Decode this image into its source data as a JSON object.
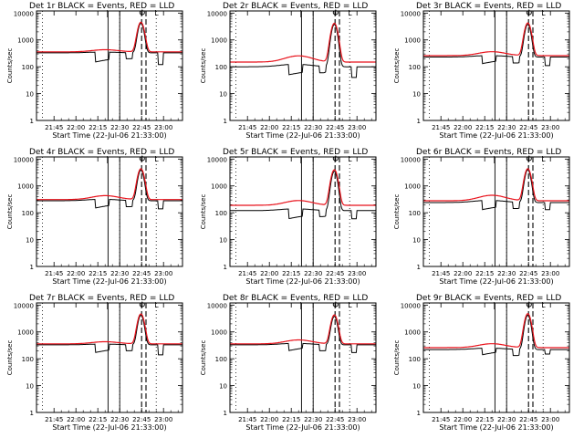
{
  "colors": {
    "events": "#000000",
    "lld": "#e8121b",
    "axes": "#000000",
    "background": "#ffffff"
  },
  "shared": {
    "ylabel": "Counts/sec",
    "xlabel": "Start Time (22-Jul-06 21:33:00)",
    "x_tick_labels": [
      "21:45",
      "22:00",
      "22:15",
      "22:30",
      "22:45",
      "23:00"
    ],
    "x_tick_minutes": [
      12,
      27,
      42,
      57,
      72,
      87
    ],
    "y_tick_labels": [
      "1",
      "10",
      "100",
      "1000",
      "10000"
    ],
    "y_tick_values": [
      1,
      10,
      100,
      1000,
      10000
    ],
    "event_markers": {
      "solid": "|",
      "flare_peak": "Φ",
      "end": "L"
    },
    "solid_line_minutes": [
      49,
      57
    ],
    "dashed_line_minutes": [
      72,
      75
    ],
    "dotted_line_minutes": [
      4,
      57,
      82
    ],
    "x_range_minutes": [
      0,
      100
    ],
    "y_range": [
      1,
      12000
    ],
    "y_scale": "log",
    "legend": "none"
  },
  "chart_data": [
    {
      "type": "line",
      "title": "Det 1r BLACK = Events, RED = LLD",
      "events_base": 330,
      "lld_base": 360,
      "events_dip": 150,
      "lld_bump": 1.2,
      "peak": 4200,
      "peak_lld": 4600,
      "post_dip": 120
    },
    {
      "type": "line",
      "title": "Det 2r BLACK = Events, RED = LLD",
      "events_base": 100,
      "lld_base": 150,
      "events_dip": 50,
      "lld_bump": 1.7,
      "peak": 3800,
      "peak_lld": 4200,
      "post_dip": 40
    },
    {
      "type": "line",
      "title": "Det 3r BLACK = Events, RED = LLD",
      "events_base": 230,
      "lld_base": 260,
      "events_dip": 130,
      "lld_bump": 1.4,
      "peak": 3800,
      "peak_lld": 4300,
      "post_dip": 110
    },
    {
      "type": "line",
      "title": "Det 4r BLACK = Events, RED = LLD",
      "events_base": 280,
      "lld_base": 310,
      "events_dip": 150,
      "lld_bump": 1.4,
      "peak": 3900,
      "peak_lld": 4400,
      "post_dip": 140
    },
    {
      "type": "line",
      "title": "Det 5r BLACK = Events, RED = LLD",
      "events_base": 120,
      "lld_base": 190,
      "events_dip": 60,
      "lld_bump": 1.5,
      "peak": 3500,
      "peak_lld": 4000,
      "post_dip": 60
    },
    {
      "type": "line",
      "title": "Det 6r BLACK = Events, RED = LLD",
      "events_base": 240,
      "lld_base": 280,
      "events_dip": 130,
      "lld_bump": 1.6,
      "peak": 4000,
      "peak_lld": 4400,
      "post_dip": 130
    },
    {
      "type": "line",
      "title": "Det 7r BLACK = Events, RED = LLD",
      "events_base": 330,
      "lld_base": 360,
      "events_dip": 170,
      "lld_bump": 1.2,
      "peak": 4200,
      "peak_lld": 4700,
      "post_dip": 140
    },
    {
      "type": "line",
      "title": "Det 8r BLACK = Events, RED = LLD",
      "events_base": 330,
      "lld_base": 360,
      "events_dip": 200,
      "lld_bump": 1.4,
      "peak": 3800,
      "peak_lld": 4300,
      "post_dip": 170
    },
    {
      "type": "line",
      "title": "Det 9r BLACK = Events, RED = LLD",
      "events_base": 220,
      "lld_base": 260,
      "events_dip": 140,
      "lld_bump": 1.4,
      "peak": 4200,
      "peak_lld": 4800,
      "post_dip": 150
    }
  ]
}
